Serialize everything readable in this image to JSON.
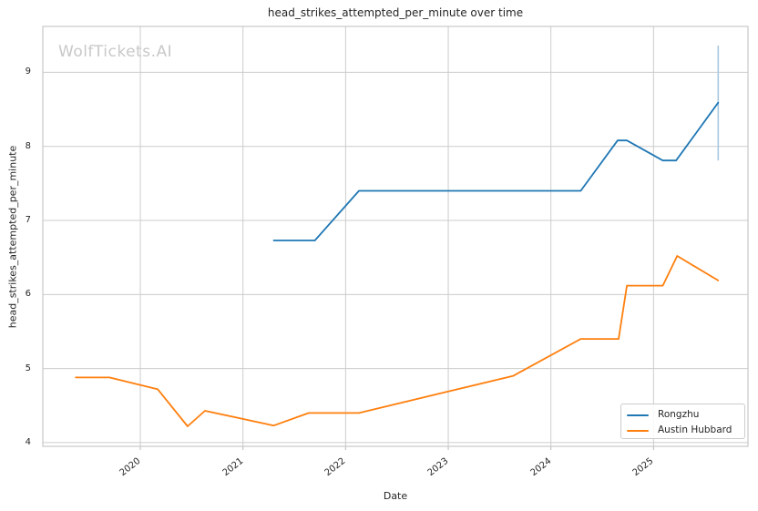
{
  "watermark": "WolfTickets.AI",
  "colors": {
    "grid": "#cccccc",
    "spine": "#c9c9c9",
    "tick_mark": "#b8b8b8",
    "text": "#262626",
    "watermark": "#c8c8c8",
    "background": "#ffffff"
  },
  "chart_data": {
    "type": "line",
    "title": "head_strikes_attempted_per_minute over time",
    "xlabel": "Date",
    "ylabel": "head_strikes_attempted_per_minute",
    "grid": true,
    "legend_position": "lower right",
    "xlim": [
      2019.05,
      2025.92
    ],
    "ylim": [
      3.95,
      9.62
    ],
    "x_ticks": [
      2020,
      2021,
      2022,
      2023,
      2024,
      2025
    ],
    "x_tick_labels": [
      "2020",
      "2021",
      "2022",
      "2023",
      "2024",
      "2025"
    ],
    "y_ticks": [
      4,
      5,
      6,
      7,
      8,
      9
    ],
    "y_tick_labels": [
      "4",
      "5",
      "6",
      "7",
      "8",
      "9"
    ],
    "series": [
      {
        "name": "Rongzhu",
        "color": "#1f77b4",
        "x": [
          2021.3,
          2021.7,
          2022.13,
          2024.29,
          2024.65,
          2024.74,
          2025.09,
          2025.22,
          2025.63
        ],
        "y": [
          6.73,
          6.73,
          7.4,
          7.4,
          8.08,
          8.08,
          7.81,
          7.81,
          8.59
        ]
      },
      {
        "name": "Austin Hubbard",
        "color": "#ff7f0e",
        "x": [
          2019.37,
          2019.7,
          2020.17,
          2020.46,
          2020.63,
          2021.3,
          2021.64,
          2022.13,
          2023.0,
          2023.63,
          2024.29,
          2024.66,
          2024.74,
          2025.09,
          2025.23,
          2025.63
        ],
        "y": [
          4.88,
          4.88,
          4.72,
          4.22,
          4.43,
          4.23,
          4.4,
          4.4,
          4.69,
          4.9,
          5.4,
          5.4,
          6.12,
          6.12,
          6.52,
          6.19
        ]
      }
    ],
    "error_bar": {
      "series": "Rongzhu",
      "x": 2025.63,
      "y_min": 7.81,
      "y_max": 9.36,
      "color": "#a8c8e1"
    }
  }
}
